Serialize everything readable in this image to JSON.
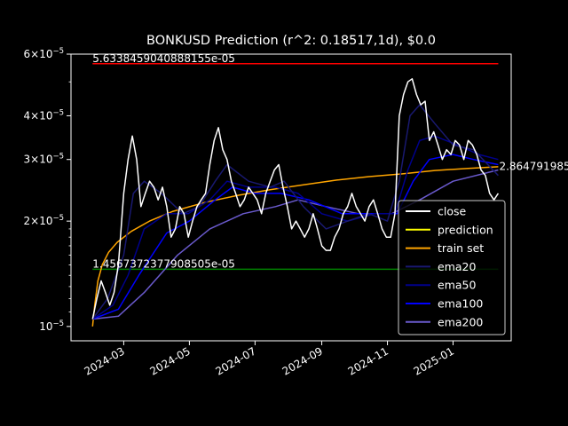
{
  "chart_data": {
    "type": "line",
    "title": "BONKUSD Prediction (r^2: 0.18517,1d), $0.0",
    "xlabel": "",
    "ylabel": "",
    "y_scale": "log",
    "ylim": [
      9.1e-06,
      6e-05
    ],
    "xlim": [
      "2024-01-12",
      "2025-02-24"
    ],
    "x_ticks": [
      "2024-03",
      "2024-05",
      "2024-07",
      "2024-09",
      "2024-11",
      "2025-01"
    ],
    "y_ticks": [
      {
        "value": 1e-05,
        "label": "10^-5",
        "mantissa": "10",
        "exponent": "−5"
      },
      {
        "value": 2e-05,
        "label": "2×10^-5",
        "mantissa": "2×10",
        "exponent": "−5"
      },
      {
        "value": 3e-05,
        "label": "3×10^-5",
        "mantissa": "3×10",
        "exponent": "−5"
      },
      {
        "value": 4e-05,
        "label": "4×10^-5",
        "mantissa": "4×10",
        "exponent": "−5"
      },
      {
        "value": 6e-05,
        "label": "6×10^-5",
        "mantissa": "6×10",
        "exponent": "−5"
      }
    ],
    "background": "#000000",
    "grid": false,
    "legend_position": "lower-right",
    "legend": [
      "close",
      "prediction",
      "train set",
      "ema20",
      "ema50",
      "ema100",
      "ema200"
    ],
    "annotations": {
      "max_line": {
        "value": 5.6338459040888155e-05,
        "label": "5.6338459040888155e-05",
        "color": "#ff0000",
        "x_start": "2024-02-01",
        "x_end": "2025-02-12"
      },
      "min_line": {
        "value": 1.4567372377908505e-05,
        "label": "1.4567372377908505e-05",
        "color": "#008000",
        "x_start": "2024-02-01",
        "x_end": "2025-02-12"
      },
      "last_value": {
        "value": 2.86479e-05,
        "label": "2.864791985",
        "x": "2025-02-12"
      }
    },
    "series": [
      {
        "name": "close",
        "color": "#ffffff",
        "width": 1.5,
        "points": [
          [
            "2024-02-01",
            1.05e-05
          ],
          [
            "2024-02-05",
            1.2e-05
          ],
          [
            "2024-02-09",
            1.35e-05
          ],
          [
            "2024-02-13",
            1.25e-05
          ],
          [
            "2024-02-17",
            1.15e-05
          ],
          [
            "2024-02-21",
            1.25e-05
          ],
          [
            "2024-02-25",
            1.5e-05
          ],
          [
            "2024-03-01",
            2.4e-05
          ],
          [
            "2024-03-05",
            3e-05
          ],
          [
            "2024-03-09",
            3.5e-05
          ],
          [
            "2024-03-13",
            3e-05
          ],
          [
            "2024-03-17",
            2.2e-05
          ],
          [
            "2024-03-21",
            2.4e-05
          ],
          [
            "2024-03-25",
            2.6e-05
          ],
          [
            "2024-03-29",
            2.5e-05
          ],
          [
            "2024-04-02",
            2.3e-05
          ],
          [
            "2024-04-06",
            2.5e-05
          ],
          [
            "2024-04-10",
            2.2e-05
          ],
          [
            "2024-04-14",
            1.8e-05
          ],
          [
            "2024-04-18",
            1.9e-05
          ],
          [
            "2024-04-22",
            2.2e-05
          ],
          [
            "2024-04-26",
            2.1e-05
          ],
          [
            "2024-04-30",
            1.8e-05
          ],
          [
            "2024-05-04",
            2e-05
          ],
          [
            "2024-05-08",
            2.2e-05
          ],
          [
            "2024-05-12",
            2.3e-05
          ],
          [
            "2024-05-16",
            2.4e-05
          ],
          [
            "2024-05-20",
            2.9e-05
          ],
          [
            "2024-05-24",
            3.4e-05
          ],
          [
            "2024-05-28",
            3.7e-05
          ],
          [
            "2024-06-01",
            3.2e-05
          ],
          [
            "2024-06-05",
            3e-05
          ],
          [
            "2024-06-09",
            2.6e-05
          ],
          [
            "2024-06-13",
            2.4e-05
          ],
          [
            "2024-06-17",
            2.2e-05
          ],
          [
            "2024-06-21",
            2.3e-05
          ],
          [
            "2024-06-25",
            2.5e-05
          ],
          [
            "2024-06-29",
            2.4e-05
          ],
          [
            "2024-07-03",
            2.3e-05
          ],
          [
            "2024-07-07",
            2.1e-05
          ],
          [
            "2024-07-11",
            2.4e-05
          ],
          [
            "2024-07-15",
            2.6e-05
          ],
          [
            "2024-07-19",
            2.8e-05
          ],
          [
            "2024-07-23",
            2.9e-05
          ],
          [
            "2024-07-27",
            2.5e-05
          ],
          [
            "2024-07-31",
            2.2e-05
          ],
          [
            "2024-08-04",
            1.9e-05
          ],
          [
            "2024-08-08",
            2e-05
          ],
          [
            "2024-08-12",
            1.9e-05
          ],
          [
            "2024-08-16",
            1.8e-05
          ],
          [
            "2024-08-20",
            1.9e-05
          ],
          [
            "2024-08-24",
            2.1e-05
          ],
          [
            "2024-08-28",
            1.9e-05
          ],
          [
            "2024-09-01",
            1.7e-05
          ],
          [
            "2024-09-05",
            1.65e-05
          ],
          [
            "2024-09-09",
            1.65e-05
          ],
          [
            "2024-09-13",
            1.8e-05
          ],
          [
            "2024-09-17",
            1.9e-05
          ],
          [
            "2024-09-21",
            2.1e-05
          ],
          [
            "2024-09-25",
            2.2e-05
          ],
          [
            "2024-09-29",
            2.4e-05
          ],
          [
            "2024-10-03",
            2.2e-05
          ],
          [
            "2024-10-07",
            2.1e-05
          ],
          [
            "2024-10-11",
            2e-05
          ],
          [
            "2024-10-15",
            2.2e-05
          ],
          [
            "2024-10-19",
            2.3e-05
          ],
          [
            "2024-10-23",
            2.1e-05
          ],
          [
            "2024-10-27",
            1.9e-05
          ],
          [
            "2024-10-31",
            1.8e-05
          ],
          [
            "2024-11-04",
            1.8e-05
          ],
          [
            "2024-11-08",
            2.1e-05
          ],
          [
            "2024-11-12",
            4e-05
          ],
          [
            "2024-11-16",
            4.6e-05
          ],
          [
            "2024-11-20",
            5e-05
          ],
          [
            "2024-11-24",
            5.1e-05
          ],
          [
            "2024-11-28",
            4.6e-05
          ],
          [
            "2024-12-02",
            4.3e-05
          ],
          [
            "2024-12-06",
            4.4e-05
          ],
          [
            "2024-12-10",
            3.4e-05
          ],
          [
            "2024-12-14",
            3.6e-05
          ],
          [
            "2024-12-18",
            3.3e-05
          ],
          [
            "2024-12-22",
            3e-05
          ],
          [
            "2024-12-26",
            3.2e-05
          ],
          [
            "2024-12-30",
            3.1e-05
          ],
          [
            "2025-01-03",
            3.4e-05
          ],
          [
            "2025-01-07",
            3.3e-05
          ],
          [
            "2025-01-11",
            3e-05
          ],
          [
            "2025-01-15",
            3.4e-05
          ],
          [
            "2025-01-19",
            3.3e-05
          ],
          [
            "2025-01-23",
            3.1e-05
          ],
          [
            "2025-01-27",
            2.8e-05
          ],
          [
            "2025-01-31",
            2.7e-05
          ],
          [
            "2025-02-04",
            2.4e-05
          ],
          [
            "2025-02-08",
            2.3e-05
          ],
          [
            "2025-02-12",
            2.4e-05
          ]
        ]
      },
      {
        "name": "prediction",
        "color": "#ffff00",
        "width": 1.5,
        "points": []
      },
      {
        "name": "train set",
        "color": "#ffa500",
        "width": 1.5,
        "points": [
          [
            "2024-02-01",
            1e-05
          ],
          [
            "2024-02-03",
            1.15e-05
          ],
          [
            "2024-02-06",
            1.35e-05
          ],
          [
            "2024-02-10",
            1.5e-05
          ],
          [
            "2024-02-16",
            1.63e-05
          ],
          [
            "2024-02-24",
            1.74e-05
          ],
          [
            "2024-03-08",
            1.87e-05
          ],
          [
            "2024-03-25",
            2e-05
          ],
          [
            "2024-04-15",
            2.13e-05
          ],
          [
            "2024-05-15",
            2.26e-05
          ],
          [
            "2024-06-15",
            2.37e-05
          ],
          [
            "2024-07-15",
            2.46e-05
          ],
          [
            "2024-08-15",
            2.54e-05
          ],
          [
            "2024-09-15",
            2.62e-05
          ],
          [
            "2024-10-15",
            2.68e-05
          ],
          [
            "2024-11-15",
            2.73e-05
          ],
          [
            "2024-12-15",
            2.79e-05
          ],
          [
            "2025-01-15",
            2.83e-05
          ],
          [
            "2025-02-12",
            2.86e-05
          ]
        ]
      },
      {
        "name": "ema20",
        "color": "#191970",
        "width": 1.5,
        "points": [
          [
            "2024-02-01",
            1.05e-05
          ],
          [
            "2024-02-15",
            1.2e-05
          ],
          [
            "2024-03-01",
            1.6e-05
          ],
          [
            "2024-03-10",
            2.4e-05
          ],
          [
            "2024-03-20",
            2.6e-05
          ],
          [
            "2024-04-05",
            2.4e-05
          ],
          [
            "2024-04-25",
            2.1e-05
          ],
          [
            "2024-05-10",
            2.2e-05
          ],
          [
            "2024-05-25",
            2.6e-05
          ],
          [
            "2024-06-05",
            2.9e-05
          ],
          [
            "2024-06-25",
            2.6e-05
          ],
          [
            "2024-07-15",
            2.5e-05
          ],
          [
            "2024-07-28",
            2.6e-05
          ],
          [
            "2024-08-15",
            2.2e-05
          ],
          [
            "2024-09-05",
            1.9e-05
          ],
          [
            "2024-09-25",
            2e-05
          ],
          [
            "2024-10-15",
            2.1e-05
          ],
          [
            "2024-11-01",
            2e-05
          ],
          [
            "2024-11-12",
            2.6e-05
          ],
          [
            "2024-11-22",
            4e-05
          ],
          [
            "2024-12-01",
            4.3e-05
          ],
          [
            "2024-12-15",
            3.8e-05
          ],
          [
            "2025-01-01",
            3.3e-05
          ],
          [
            "2025-01-20",
            3.2e-05
          ],
          [
            "2025-02-12",
            2.7e-05
          ]
        ]
      },
      {
        "name": "ema50",
        "color": "#00008b",
        "width": 1.5,
        "points": [
          [
            "2024-02-01",
            1.05e-05
          ],
          [
            "2024-02-20",
            1.15e-05
          ],
          [
            "2024-03-05",
            1.4e-05
          ],
          [
            "2024-03-20",
            1.9e-05
          ],
          [
            "2024-04-10",
            2.1e-05
          ],
          [
            "2024-04-30",
            2.1e-05
          ],
          [
            "2024-05-20",
            2.3e-05
          ],
          [
            "2024-06-05",
            2.6e-05
          ],
          [
            "2024-06-25",
            2.5e-05
          ],
          [
            "2024-07-20",
            2.5e-05
          ],
          [
            "2024-08-10",
            2.4e-05
          ],
          [
            "2024-09-01",
            2.1e-05
          ],
          [
            "2024-09-25",
            2e-05
          ],
          [
            "2024-10-20",
            2.1e-05
          ],
          [
            "2024-11-08",
            2.1e-05
          ],
          [
            "2024-11-20",
            2.8e-05
          ],
          [
            "2024-12-01",
            3.4e-05
          ],
          [
            "2024-12-15",
            3.5e-05
          ],
          [
            "2025-01-05",
            3.3e-05
          ],
          [
            "2025-01-25",
            3.1e-05
          ],
          [
            "2025-02-12",
            3e-05
          ]
        ]
      },
      {
        "name": "ema100",
        "color": "#0000ff",
        "width": 1.5,
        "points": [
          [
            "2024-02-01",
            1.05e-05
          ],
          [
            "2024-02-25",
            1.12e-05
          ],
          [
            "2024-03-15",
            1.4e-05
          ],
          [
            "2024-04-10",
            1.85e-05
          ],
          [
            "2024-05-01",
            2e-05
          ],
          [
            "2024-05-25",
            2.3e-05
          ],
          [
            "2024-06-10",
            2.5e-05
          ],
          [
            "2024-07-01",
            2.4e-05
          ],
          [
            "2024-07-25",
            2.4e-05
          ],
          [
            "2024-08-20",
            2.3e-05
          ],
          [
            "2024-09-20",
            2.1e-05
          ],
          [
            "2024-10-20",
            2.1e-05
          ],
          [
            "2024-11-10",
            2.1e-05
          ],
          [
            "2024-11-25",
            2.6e-05
          ],
          [
            "2024-12-10",
            3e-05
          ],
          [
            "2025-01-01",
            3.1e-05
          ],
          [
            "2025-01-20",
            3e-05
          ],
          [
            "2025-02-12",
            2.9e-05
          ]
        ]
      },
      {
        "name": "ema200",
        "color": "#6a5acd",
        "width": 1.5,
        "points": [
          [
            "2024-02-01",
            1.05e-05
          ],
          [
            "2024-02-25",
            1.07e-05
          ],
          [
            "2024-03-20",
            1.25e-05
          ],
          [
            "2024-04-20",
            1.6e-05
          ],
          [
            "2024-05-20",
            1.9e-05
          ],
          [
            "2024-06-20",
            2.1e-05
          ],
          [
            "2024-07-20",
            2.2e-05
          ],
          [
            "2024-08-10",
            2.3e-05
          ],
          [
            "2024-09-05",
            2.2e-05
          ],
          [
            "2024-10-05",
            2.1e-05
          ],
          [
            "2024-11-05",
            2.1e-05
          ],
          [
            "2024-12-01",
            2.3e-05
          ],
          [
            "2025-01-01",
            2.6e-05
          ],
          [
            "2025-02-12",
            2.8e-05
          ]
        ]
      }
    ]
  }
}
